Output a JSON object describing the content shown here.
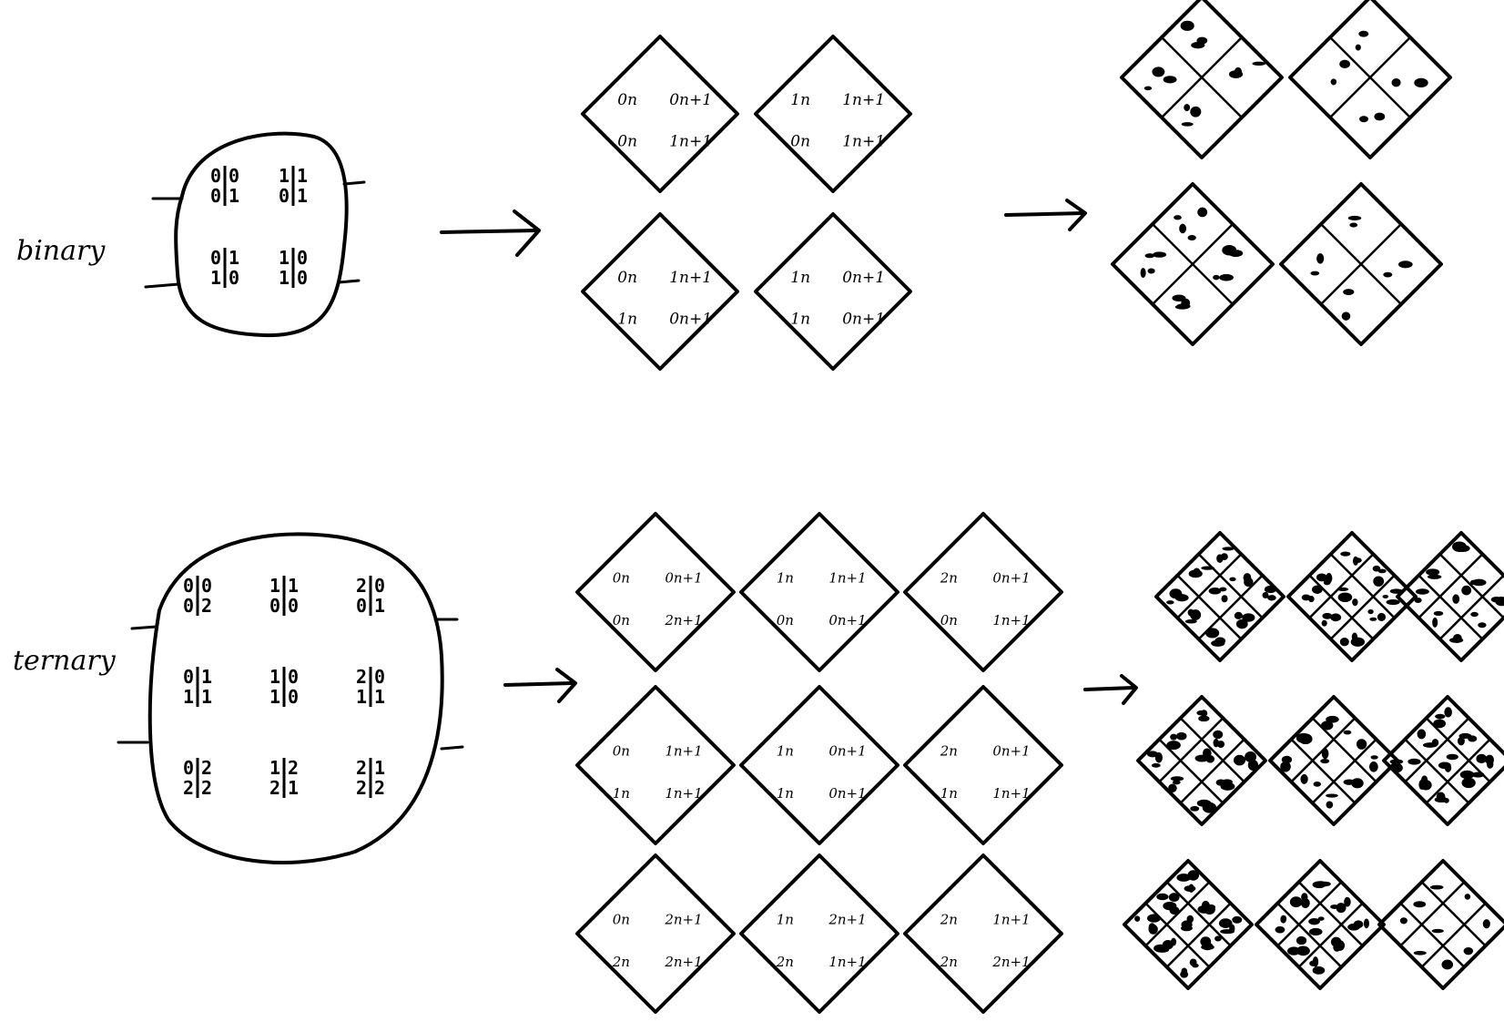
{
  "rows": [
    {
      "label": "binary",
      "rules": [
        {
          "tl": "0",
          "tr": "0",
          "bl": "0",
          "br": "1"
        },
        {
          "tl": "1",
          "tr": "1",
          "bl": "0",
          "br": "1"
        },
        {
          "tl": "0",
          "tr": "1",
          "bl": "1",
          "br": "0"
        },
        {
          "tl": "1",
          "tr": "0",
          "bl": "1",
          "br": "0"
        }
      ],
      "tiles": [
        {
          "top": "0n",
          "right": "0n+1",
          "left": "0n",
          "bottom": "1n+1"
        },
        {
          "top": "1n",
          "right": "1n+1",
          "left": "0n",
          "bottom": "1n+1"
        },
        {
          "top": "0n",
          "right": "1n+1",
          "left": "1n",
          "bottom": "0n+1"
        },
        {
          "top": "1n",
          "right": "0n+1",
          "left": "1n",
          "bottom": "0n+1"
        }
      ]
    },
    {
      "label": "ternary",
      "rules": [
        {
          "tl": "0",
          "tr": "0",
          "bl": "0",
          "br": "2"
        },
        {
          "tl": "1",
          "tr": "1",
          "bl": "0",
          "br": "0"
        },
        {
          "tl": "2",
          "tr": "0",
          "bl": "0",
          "br": "1"
        },
        {
          "tl": "0",
          "tr": "1",
          "bl": "1",
          "br": "1"
        },
        {
          "tl": "1",
          "tr": "0",
          "bl": "1",
          "br": "0"
        },
        {
          "tl": "2",
          "tr": "0",
          "bl": "1",
          "br": "1"
        },
        {
          "tl": "0",
          "tr": "2",
          "bl": "2",
          "br": "2"
        },
        {
          "tl": "1",
          "tr": "2",
          "bl": "2",
          "br": "1"
        },
        {
          "tl": "2",
          "tr": "1",
          "bl": "2",
          "br": "2"
        }
      ],
      "tiles": [
        {
          "top": "0n",
          "right": "0n+1",
          "left": "0n",
          "bottom": "2n+1"
        },
        {
          "top": "1n",
          "right": "1n+1",
          "left": "0n",
          "bottom": "0n+1"
        },
        {
          "top": "2n",
          "right": "0n+1",
          "left": "0n",
          "bottom": "1n+1"
        },
        {
          "top": "0n",
          "right": "1n+1",
          "left": "1n",
          "bottom": "1n+1"
        },
        {
          "top": "1n",
          "right": "0n+1",
          "left": "1n",
          "bottom": "0n+1"
        },
        {
          "top": "2n",
          "right": "0n+1",
          "left": "1n",
          "bottom": "1n+1"
        },
        {
          "top": "0n",
          "right": "2n+1",
          "left": "2n",
          "bottom": "2n+1"
        },
        {
          "top": "1n",
          "right": "2n+1",
          "left": "2n",
          "bottom": "1n+1"
        },
        {
          "top": "2n",
          "right": "1n+1",
          "left": "2n",
          "bottom": "2n+1"
        }
      ]
    }
  ]
}
